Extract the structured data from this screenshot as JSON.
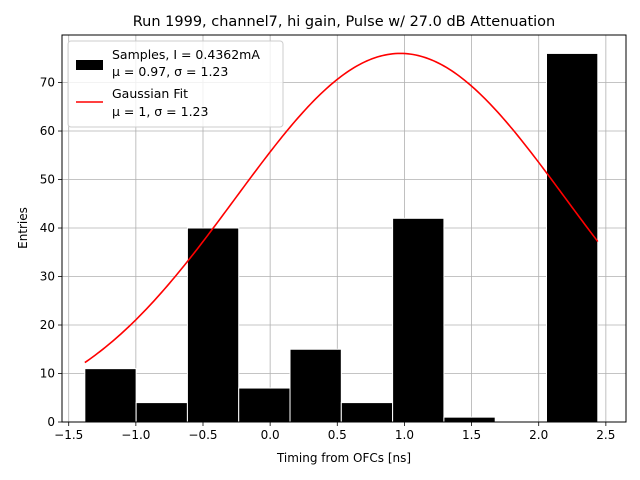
{
  "chart_data": {
    "type": "bar",
    "title": "Run 1999, channel7, hi gain, Pulse w/ 27.0 dB Attenuation",
    "xlabel": "Timing from OFCs [ns]",
    "ylabel": "Entries",
    "xlim": [
      -1.55,
      2.65
    ],
    "ylim": [
      0,
      79.8
    ],
    "grid": true,
    "legend_position": "top-left",
    "x_ticks": [
      "-1.5",
      "-1.0",
      "-0.5",
      "0.0",
      "0.5",
      "1.0",
      "1.5",
      "2.0",
      "2.5"
    ],
    "y_ticks": [
      "0",
      "10",
      "20",
      "30",
      "40",
      "50",
      "60",
      "70"
    ],
    "histogram": {
      "name_line1": "Samples, I = 0.4362mA",
      "name_line2": "μ = 0.97, σ = 1.23",
      "color": "#000000",
      "bins": [
        {
          "x0": -1.38,
          "x1": -0.998,
          "value": 11
        },
        {
          "x0": -0.998,
          "x1": -0.616,
          "value": 4
        },
        {
          "x0": -0.616,
          "x1": -0.234,
          "value": 40
        },
        {
          "x0": -0.234,
          "x1": 0.148,
          "value": 7
        },
        {
          "x0": 0.148,
          "x1": 0.53,
          "value": 15
        },
        {
          "x0": 0.53,
          "x1": 0.912,
          "value": 4
        },
        {
          "x0": 0.912,
          "x1": 1.294,
          "value": 42
        },
        {
          "x0": 1.294,
          "x1": 1.676,
          "value": 1
        },
        {
          "x0": 1.676,
          "x1": 2.058,
          "value": 0
        },
        {
          "x0": 2.058,
          "x1": 2.44,
          "value": 76
        }
      ]
    },
    "fit": {
      "name_line1": "Gaussian Fit",
      "name_line2": "μ = 1, σ = 1.23",
      "color": "#ff0000",
      "amplitude": 76,
      "mu": 0.97,
      "sigma": 1.23,
      "x_range": [
        -1.38,
        2.44
      ]
    }
  }
}
